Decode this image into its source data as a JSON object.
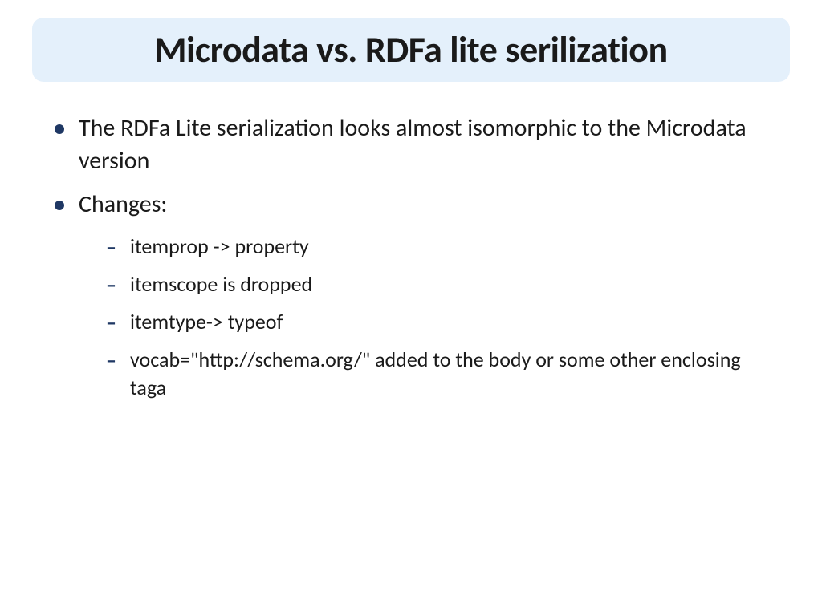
{
  "slide": {
    "title": "Microdata vs. RDFa lite serilization",
    "title_bg": "#e4f0fb",
    "title_color": "#1a1a1a",
    "title_fontsize": 46,
    "bullet_color": "#1f3864",
    "body_fontsize": 30,
    "sub_fontsize": 26,
    "bullets": [
      {
        "text": "The RDFa Lite serialization looks almost isomorphic to the Microdata version"
      },
      {
        "text": "Changes:"
      }
    ],
    "sub_bullets": [
      {
        "text": "itemprop -> property"
      },
      {
        "text": "itemscope is dropped"
      },
      {
        "text": "itemtype-> typeof"
      },
      {
        "text": "vocab=\"http://schema.org/\" added to the body or some other enclosing taga"
      }
    ]
  }
}
